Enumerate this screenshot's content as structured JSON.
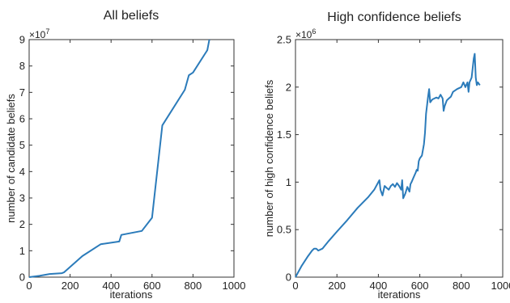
{
  "chart_data": [
    {
      "type": "line",
      "title": "All beliefs",
      "xlabel": "iterations",
      "ylabel": "number of candidate beliefs",
      "xlim": [
        0,
        1000
      ],
      "ylim": [
        0,
        9
      ],
      "x_ticks": [
        "0",
        "200",
        "400",
        "600",
        "800",
        "1000"
      ],
      "y_ticks": [
        "0",
        "1",
        "2",
        "3",
        "4",
        "5",
        "6",
        "7",
        "8",
        "9"
      ],
      "y_exponent": "×10",
      "y_exponent_power": "7",
      "grid": false,
      "color": "#2b7bba",
      "series": [
        {
          "x": [
            0,
            50,
            100,
            160,
            170,
            260,
            350,
            440,
            450,
            550,
            600,
            650,
            760,
            780,
            800,
            870,
            880
          ],
          "y": [
            0,
            0.05,
            0.12,
            0.15,
            0.18,
            0.8,
            1.25,
            1.35,
            1.6,
            1.75,
            2.25,
            5.75,
            7.1,
            7.65,
            7.75,
            8.6,
            9.0
          ]
        }
      ]
    },
    {
      "type": "line",
      "title": "High confidence beliefs",
      "xlabel": "iterations",
      "ylabel": "number of high confidence beliefs",
      "xlim": [
        0,
        1000
      ],
      "ylim": [
        0,
        2.5
      ],
      "x_ticks": [
        "0",
        "200",
        "400",
        "600",
        "800",
        "1000"
      ],
      "y_ticks": [
        "0",
        "0.5",
        "1",
        "1.5",
        "2",
        "2.5"
      ],
      "y_exponent": "×10",
      "y_exponent_power": "6",
      "grid": false,
      "color": "#2b7bba",
      "series": [
        {
          "x": [
            0,
            30,
            60,
            80,
            90,
            100,
            110,
            130,
            160,
            200,
            250,
            300,
            350,
            380,
            400,
            405,
            410,
            420,
            430,
            440,
            450,
            460,
            470,
            480,
            490,
            500,
            510,
            515,
            520,
            530,
            540,
            550,
            555,
            560,
            570,
            580,
            585,
            590,
            595,
            600,
            610,
            620,
            625,
            630,
            640,
            645,
            650,
            660,
            670,
            680,
            690,
            700,
            710,
            715,
            720,
            730,
            740,
            750,
            760,
            780,
            800,
            810,
            820,
            830,
            835,
            840,
            850,
            855,
            860,
            865,
            870,
            875,
            880,
            890
          ],
          "y": [
            0,
            0.12,
            0.22,
            0.28,
            0.3,
            0.3,
            0.28,
            0.3,
            0.38,
            0.48,
            0.6,
            0.73,
            0.84,
            0.92,
            1.0,
            1.02,
            0.92,
            0.86,
            0.96,
            0.94,
            0.92,
            0.96,
            0.98,
            0.95,
            0.99,
            0.96,
            0.92,
            1.02,
            0.83,
            0.88,
            0.95,
            0.9,
            0.98,
            1.0,
            1.05,
            1.1,
            1.13,
            1.12,
            1.22,
            1.25,
            1.28,
            1.4,
            1.52,
            1.72,
            1.9,
            1.98,
            1.84,
            1.87,
            1.88,
            1.89,
            1.88,
            1.92,
            1.88,
            1.75,
            1.8,
            1.86,
            1.88,
            1.9,
            1.95,
            1.98,
            2.0,
            2.05,
            2.0,
            2.05,
            1.95,
            2.05,
            2.1,
            2.2,
            2.3,
            2.35,
            2.1,
            2.02,
            2.05,
            2.02
          ]
        }
      ]
    }
  ]
}
